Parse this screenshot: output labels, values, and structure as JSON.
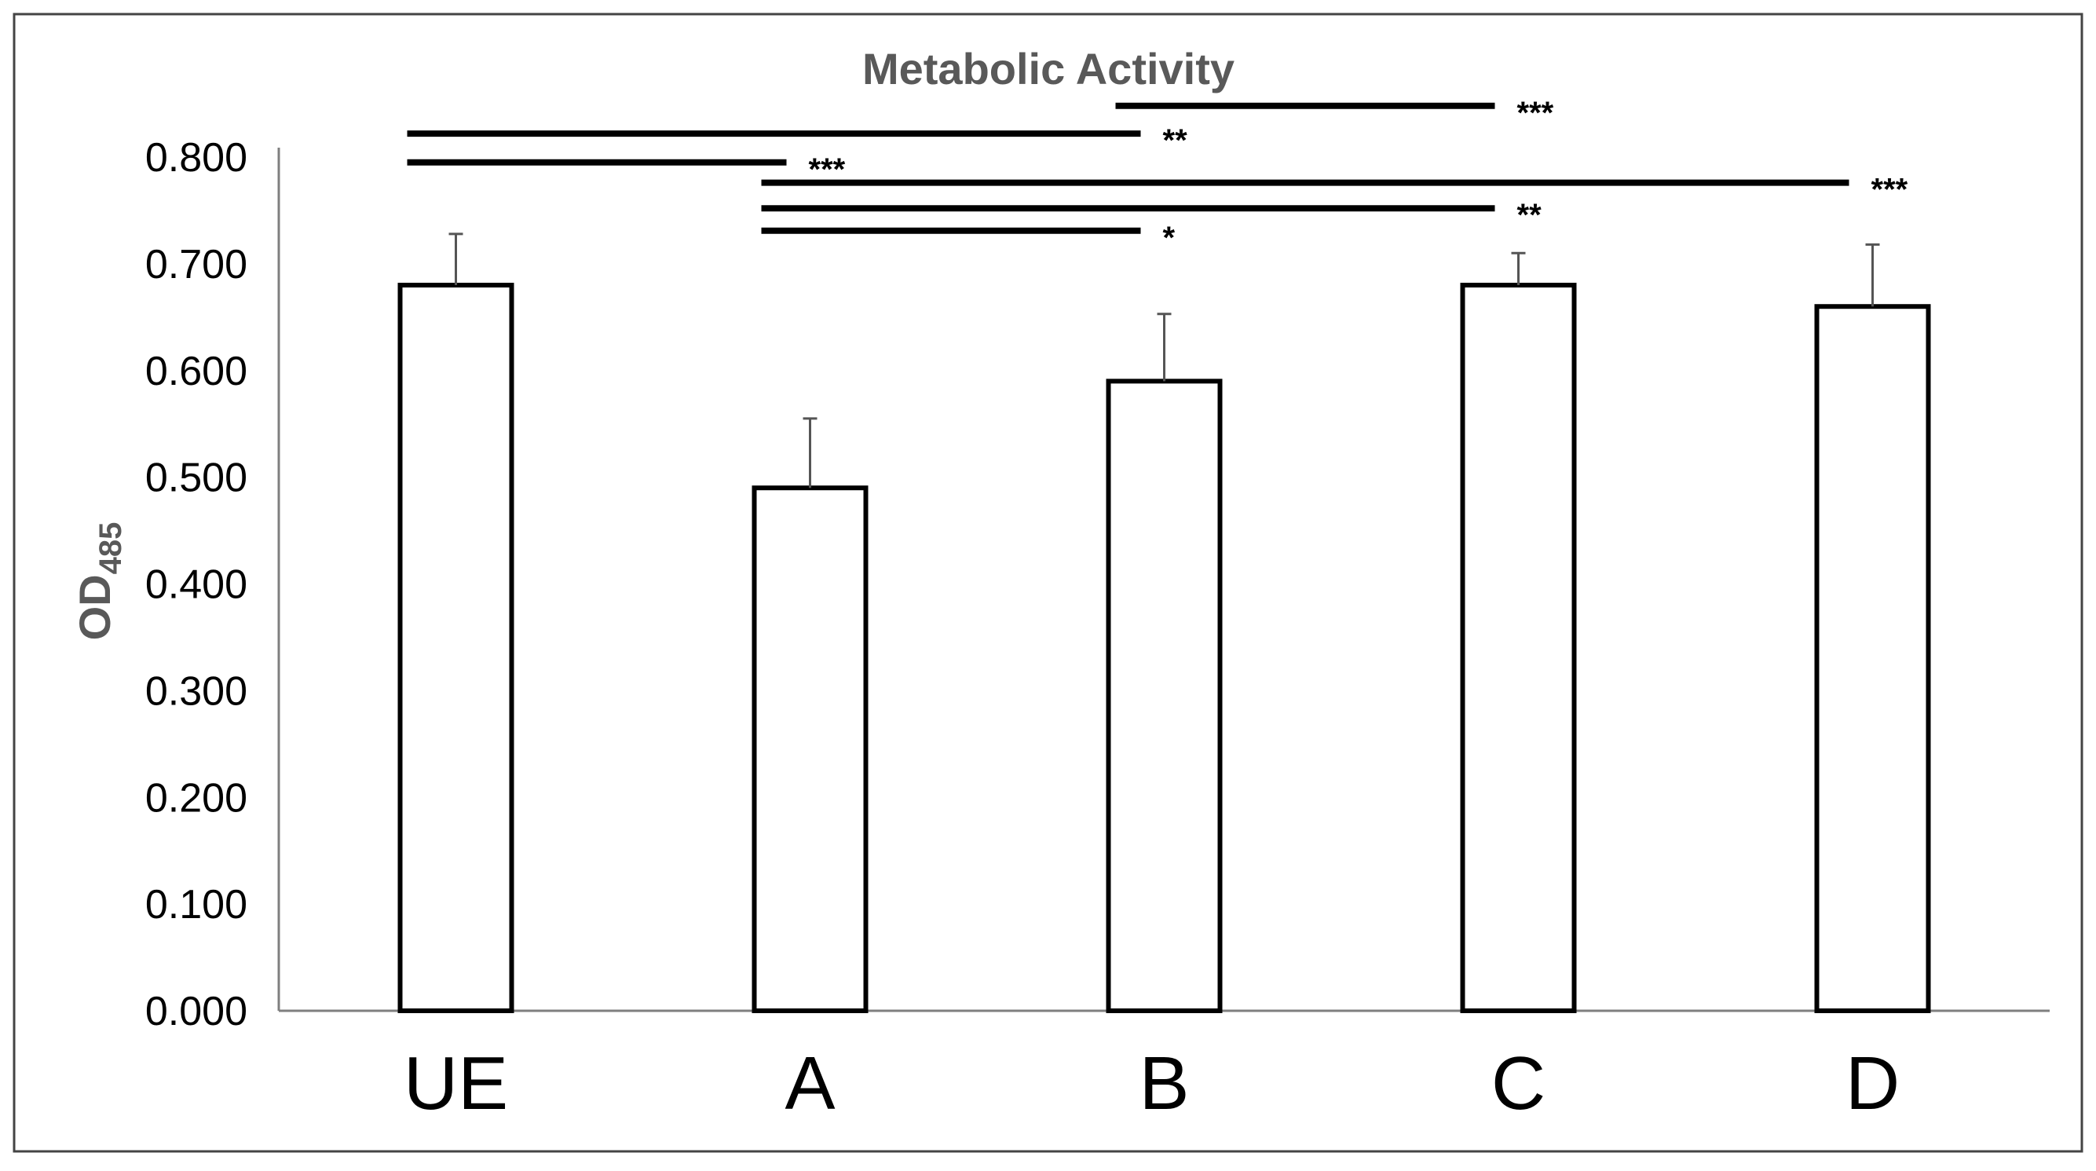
{
  "chart_data": {
    "type": "bar",
    "title": "Metabolic Activity",
    "xlabel": "",
    "ylabel": "OD",
    "ylabel_subscript": "485",
    "categories": [
      "UE",
      "A",
      "B",
      "C",
      "D"
    ],
    "values": [
      0.68,
      0.49,
      0.59,
      0.68,
      0.66
    ],
    "errors": [
      0.048,
      0.065,
      0.063,
      0.03,
      0.058
    ],
    "ylim": [
      0,
      0.8
    ],
    "yticks": [
      0,
      0.1,
      0.2,
      0.3,
      0.4,
      0.5,
      0.6,
      0.7,
      0.8
    ],
    "ytick_labels": [
      "0.000",
      "0.100",
      "0.200",
      "0.300",
      "0.400",
      "0.500",
      "0.600",
      "0.700",
      "0.800"
    ],
    "grid": false,
    "significance": [
      {
        "from": "UE",
        "to": "B",
        "label": "**",
        "y": 0.822
      },
      {
        "from": "UE",
        "to": "A",
        "label": "***",
        "y": 0.795
      },
      {
        "from": "B",
        "to": "C",
        "label": "***",
        "y": 0.848
      },
      {
        "from": "A",
        "to": "D",
        "label": "***",
        "y": 0.776
      },
      {
        "from": "A",
        "to": "C",
        "label": "**",
        "y": 0.752
      },
      {
        "from": "A",
        "to": "B",
        "label": "*",
        "y": 0.731
      }
    ],
    "colors": {
      "bar_fill": "#ffffff",
      "bar_stroke": "#000000",
      "error_bar": "#555555",
      "axis": "#7f7f7f",
      "title": "#595959",
      "ylabel": "#595959",
      "tick_label": "#000000",
      "category_label": "#000000",
      "significance": "#000000",
      "frame": "#444444"
    }
  }
}
